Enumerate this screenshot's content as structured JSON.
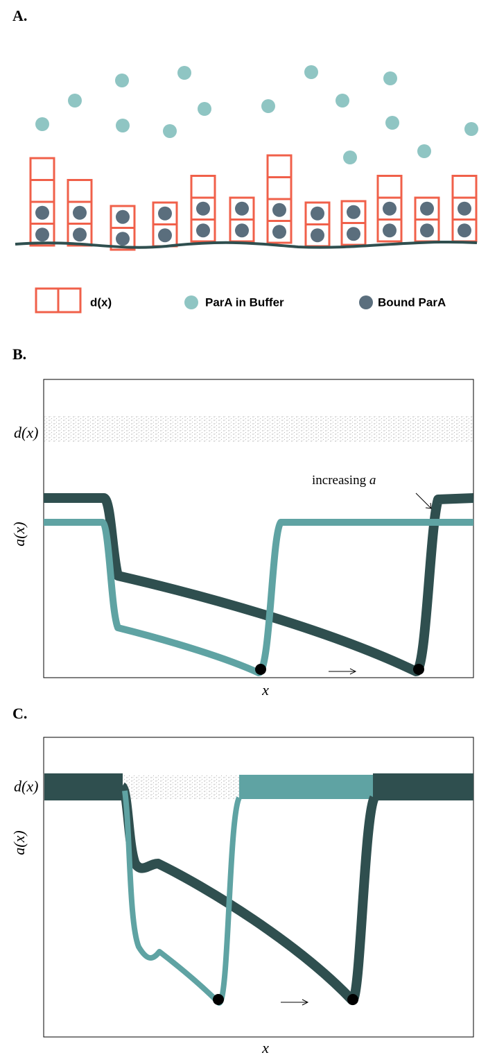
{
  "panels": [
    {
      "label": "A.",
      "legend": [
        "d(x)",
        "ParA in Buffer",
        "Bound ParA"
      ]
    },
    {
      "label": "B.",
      "y_labels": [
        "d(x)",
        "a(x)"
      ],
      "x_label": "x",
      "annotation": {
        "text": "increasing",
        "symbol": "a"
      }
    },
    {
      "label": "C.",
      "y_labels": [
        "d(x)",
        "a(x)"
      ],
      "x_label": "x"
    }
  ]
}
